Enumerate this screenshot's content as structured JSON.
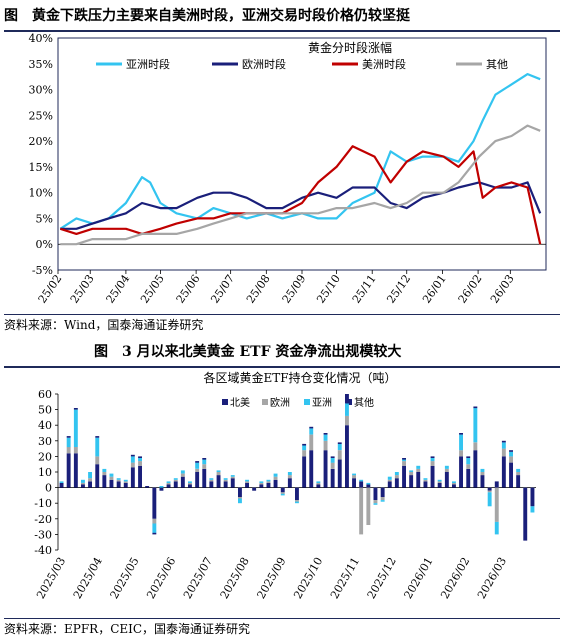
{
  "fig1": {
    "label": "图",
    "title": "黄金下跌压力主要来自美洲时段，亚洲交易时段价格仍较坚挺",
    "source": "资料来源：Wind，国泰海通证券研究"
  },
  "fig2": {
    "label": "图",
    "title": "3 月以来北美黄金 ETF 资金净流出规模较大",
    "source": "资料来源：EPFR，CEIC，国泰海通证券研究"
  },
  "colors": {
    "asia": "#33c4f0",
    "europe": "#1a1f7a",
    "americas": "#c00000",
    "other": "#a6a6a6",
    "north_america": "#1a1f7a",
    "frame": "#1f2a5a"
  },
  "chart_data": [
    {
      "type": "line",
      "title": "黄金分时段涨幅",
      "ylim": [
        -5,
        40
      ],
      "y_ticks": [
        "-5%",
        "0%",
        "5%",
        "10%",
        "15%",
        "20%",
        "25%",
        "30%",
        "35%",
        "40%"
      ],
      "x_ticks": [
        "25/02",
        "25/03",
        "25/04",
        "25/05",
        "25/06",
        "25/07",
        "25/08",
        "25/09",
        "25/10",
        "25/11",
        "25/12",
        "26/01",
        "26/02",
        "26/03"
      ],
      "legend_position": "top",
      "series": [
        {
          "name": "亚洲时段",
          "color_key": "asia",
          "x": [
            "2025-02-03",
            "2025-02-17",
            "2025-03-03",
            "2025-03-17",
            "2025-04-01",
            "2025-04-15",
            "2025-04-22",
            "2025-05-01",
            "2025-05-15",
            "2025-06-02",
            "2025-06-16",
            "2025-07-01",
            "2025-07-15",
            "2025-08-01",
            "2025-08-15",
            "2025-09-01",
            "2025-09-15",
            "2025-10-01",
            "2025-10-15",
            "2025-11-03",
            "2025-11-17",
            "2025-12-01",
            "2025-12-15",
            "2026-01-02",
            "2026-01-15",
            "2026-01-28",
            "2026-02-05",
            "2026-02-16",
            "2026-03-02",
            "2026-03-16",
            "2026-03-27"
          ],
          "y": [
            3,
            5,
            4,
            5,
            8,
            13,
            12,
            8,
            6,
            5,
            7,
            6,
            5,
            6,
            5,
            6,
            5,
            5,
            8,
            10,
            18,
            16,
            17,
            17,
            16,
            20,
            24,
            29,
            31,
            33,
            32
          ]
        },
        {
          "name": "欧洲时段",
          "color_key": "europe",
          "x": [
            "2025-02-03",
            "2025-02-17",
            "2025-03-03",
            "2025-03-17",
            "2025-04-01",
            "2025-04-15",
            "2025-05-01",
            "2025-05-15",
            "2025-06-02",
            "2025-06-16",
            "2025-07-01",
            "2025-07-15",
            "2025-08-01",
            "2025-08-15",
            "2025-09-01",
            "2025-09-15",
            "2025-10-01",
            "2025-10-15",
            "2025-11-03",
            "2025-11-17",
            "2025-12-01",
            "2025-12-15",
            "2026-01-02",
            "2026-01-15",
            "2026-02-02",
            "2026-02-16",
            "2026-03-02",
            "2026-03-16",
            "2026-03-27"
          ],
          "y": [
            3,
            3,
            4,
            5,
            6,
            8,
            7,
            7,
            9,
            10,
            10,
            9,
            7,
            7,
            9,
            10,
            9,
            11,
            11,
            8,
            7,
            9,
            10,
            11,
            12,
            11,
            11,
            12,
            6
          ]
        },
        {
          "name": "美洲时段",
          "color_key": "americas",
          "x": [
            "2025-02-03",
            "2025-02-17",
            "2025-03-03",
            "2025-03-17",
            "2025-04-01",
            "2025-04-15",
            "2025-05-01",
            "2025-05-15",
            "2025-06-02",
            "2025-06-16",
            "2025-07-01",
            "2025-07-15",
            "2025-08-01",
            "2025-08-15",
            "2025-09-01",
            "2025-09-15",
            "2025-10-01",
            "2025-10-15",
            "2025-11-03",
            "2025-11-17",
            "2025-12-01",
            "2025-12-15",
            "2026-01-02",
            "2026-01-15",
            "2026-01-28",
            "2026-02-05",
            "2026-02-16",
            "2026-03-02",
            "2026-03-16",
            "2026-03-27"
          ],
          "y": [
            3,
            2,
            3,
            3,
            3,
            2,
            3,
            4,
            5,
            5,
            6,
            6,
            6,
            6,
            8,
            12,
            15,
            19,
            17,
            12,
            16,
            18,
            17,
            15,
            18,
            9,
            11,
            12,
            11,
            0
          ]
        },
        {
          "name": "其他",
          "color_key": "other",
          "x": [
            "2025-02-03",
            "2025-02-17",
            "2025-03-03",
            "2025-03-17",
            "2025-04-01",
            "2025-04-15",
            "2025-05-01",
            "2025-05-15",
            "2025-06-02",
            "2025-06-16",
            "2025-07-01",
            "2025-07-15",
            "2025-08-01",
            "2025-08-15",
            "2025-09-01",
            "2025-09-15",
            "2025-10-01",
            "2025-10-15",
            "2025-11-03",
            "2025-11-17",
            "2025-12-01",
            "2025-12-15",
            "2026-01-02",
            "2026-01-15",
            "2026-02-02",
            "2026-02-16",
            "2026-03-02",
            "2026-03-16",
            "2026-03-27"
          ],
          "y": [
            0,
            0,
            1,
            1,
            1,
            2,
            2,
            2,
            3,
            4,
            5,
            6,
            6,
            6,
            6,
            6,
            7,
            7,
            8,
            7,
            8,
            10,
            10,
            12,
            17,
            20,
            21,
            23,
            22
          ]
        }
      ]
    },
    {
      "type": "bar",
      "stacked": true,
      "title": "各区域黄金ETF持仓变化情况（吨）",
      "ylim": [
        -40,
        60
      ],
      "y_ticks": [
        "-40",
        "-30",
        "-20",
        "-10",
        "0",
        "10",
        "20",
        "30",
        "40",
        "50",
        "60"
      ],
      "x_ticks": [
        "2025/03",
        "2025/04",
        "2025/05",
        "2025/06",
        "2025/07",
        "2025/08",
        "2025/09",
        "2025/10",
        "2025/11",
        "2025/12",
        "2026/01",
        "2026/02",
        "2026/03"
      ],
      "legend_position": "top",
      "series": [
        {
          "name": "北美",
          "color_key": "north_america",
          "values": [
            3,
            22,
            22,
            2,
            4,
            15,
            8,
            5,
            4,
            3,
            13,
            14,
            1,
            -20,
            -2,
            2,
            4,
            7,
            2,
            10,
            12,
            4,
            8,
            4,
            6,
            -6,
            3,
            -2,
            2,
            3,
            5,
            -3,
            6,
            -8,
            20,
            24,
            2,
            24,
            12,
            18,
            40,
            6,
            4,
            2,
            -8,
            -6,
            4,
            6,
            14,
            8,
            10,
            4,
            14,
            3,
            10,
            2,
            20,
            12,
            24,
            8,
            -2,
            4,
            20,
            16,
            8,
            -34,
            -12
          ]
        },
        {
          "name": "欧洲",
          "color_key": "europe_bar",
          "values": [
            0,
            4,
            4,
            1,
            2,
            5,
            2,
            2,
            1,
            1,
            3,
            3,
            0,
            -3,
            0,
            1,
            1,
            2,
            1,
            2,
            3,
            1,
            2,
            1,
            1,
            -1,
            1,
            0,
            1,
            1,
            2,
            -1,
            2,
            -1,
            4,
            10,
            1,
            6,
            4,
            6,
            6,
            2,
            -30,
            -24,
            -2,
            -2,
            1,
            2,
            3,
            2,
            2,
            1,
            3,
            1,
            2,
            1,
            4,
            3,
            5,
            2,
            -1,
            -22,
            5,
            4,
            2,
            0,
            0
          ]
        },
        {
          "name": "亚洲",
          "color_key": "asia",
          "values": [
            1,
            6,
            24,
            2,
            4,
            12,
            2,
            2,
            1,
            1,
            4,
            2,
            0,
            -6,
            1,
            1,
            1,
            2,
            1,
            4,
            3,
            1,
            1,
            1,
            1,
            -3,
            1,
            0,
            1,
            1,
            2,
            -1,
            2,
            -1,
            3,
            4,
            1,
            4,
            3,
            4,
            8,
            1,
            1,
            1,
            -1,
            -1,
            2,
            2,
            1,
            1,
            2,
            1,
            2,
            1,
            2,
            1,
            10,
            4,
            22,
            2,
            -9,
            -8,
            4,
            3,
            2,
            0,
            -4
          ]
        },
        {
          "name": "其他",
          "color_key": "europe",
          "values": [
            0,
            1,
            1,
            0,
            0,
            1,
            0,
            0,
            0,
            0,
            1,
            1,
            0,
            -1,
            0,
            0,
            0,
            0,
            0,
            1,
            1,
            0,
            0,
            0,
            0,
            0,
            0,
            0,
            0,
            0,
            0,
            0,
            0,
            0,
            1,
            1,
            0,
            1,
            1,
            1,
            6,
            0,
            0,
            0,
            0,
            0,
            0,
            0,
            1,
            0,
            0,
            0,
            1,
            0,
            0,
            0,
            1,
            1,
            1,
            0,
            0,
            0,
            1,
            1,
            0,
            0,
            0
          ]
        }
      ]
    }
  ]
}
